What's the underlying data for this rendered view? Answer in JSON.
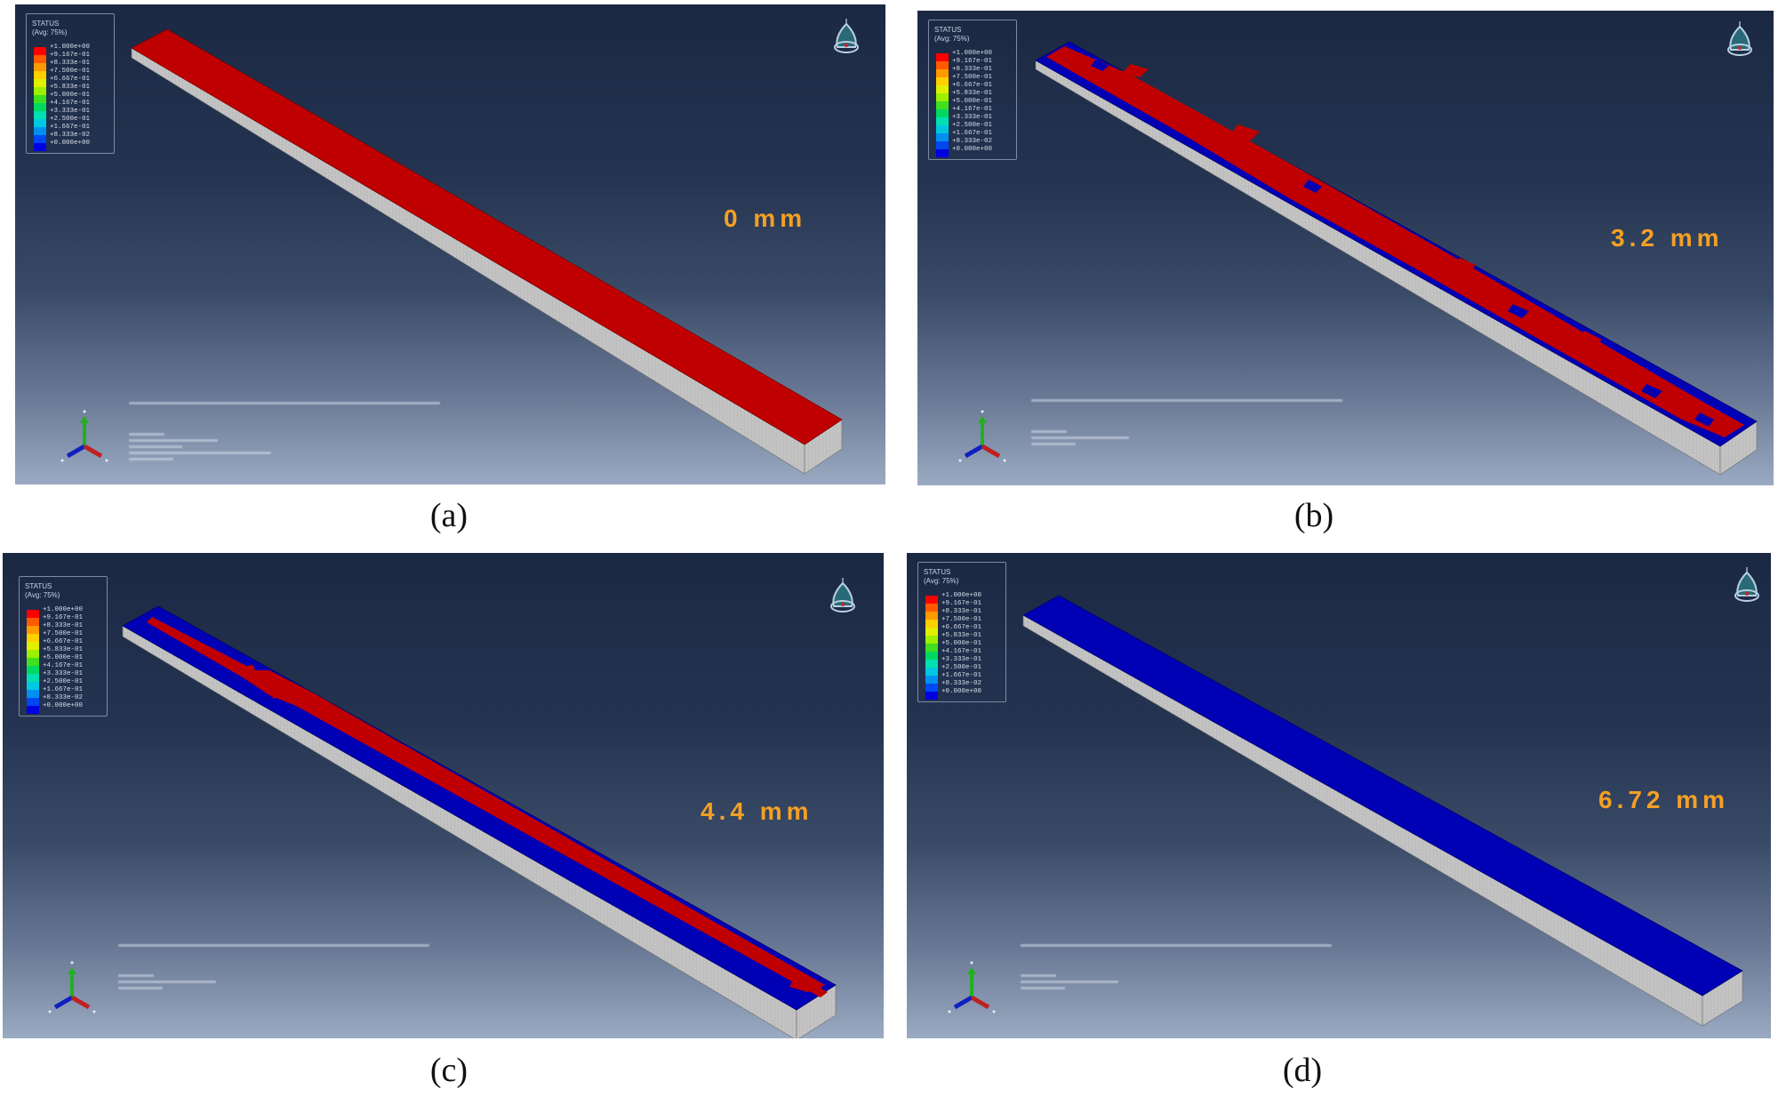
{
  "figure": {
    "panels": [
      {
        "id": "a",
        "caption": "(a)",
        "displacement_label": "0 mm",
        "state": "all-red",
        "legend": {
          "title": "STATUS",
          "subtitle": "(Avg: 75%)"
        }
      },
      {
        "id": "b",
        "caption": "(b)",
        "displacement_label": "3.2 mm",
        "state": "red-core-with-blue-edges",
        "legend": {
          "title": "STATUS",
          "subtitle": "(Avg: 75%)"
        }
      },
      {
        "id": "c",
        "caption": "(c)",
        "displacement_label": "4.4 mm",
        "state": "narrow-red-strip-on-blue",
        "legend": {
          "title": "STATUS",
          "subtitle": "(Avg: 75%)"
        }
      },
      {
        "id": "d",
        "caption": "(d)",
        "displacement_label": "6.72 mm",
        "state": "all-blue",
        "legend": {
          "title": "STATUS",
          "subtitle": "(Avg: 75%)"
        }
      }
    ],
    "legend_values": [
      "+1.000e+00",
      "+9.167e-01",
      "+8.333e-01",
      "+7.500e-01",
      "+6.667e-01",
      "+5.833e-01",
      "+5.000e-01",
      "+4.167e-01",
      "+3.333e-01",
      "+2.500e-01",
      "+1.667e-01",
      "+8.333e-02",
      "+0.000e+00"
    ],
    "legend_colors": [
      "#ff0000",
      "#ff5a00",
      "#ff9a00",
      "#ffd000",
      "#e0f000",
      "#9cf000",
      "#40e020",
      "#00d860",
      "#00e0b0",
      "#00c8e0",
      "#0090f0",
      "#0048f0",
      "#0000e0"
    ],
    "colors": {
      "active_red": "#c00000",
      "inactive_blue": "#0000b4",
      "side_grey": "#c4c4c4",
      "label_orange": "#f4a024"
    },
    "icons": {
      "logo": "abaqus-logo-icon",
      "triad": "xyz-axis-triad-icon"
    }
  }
}
